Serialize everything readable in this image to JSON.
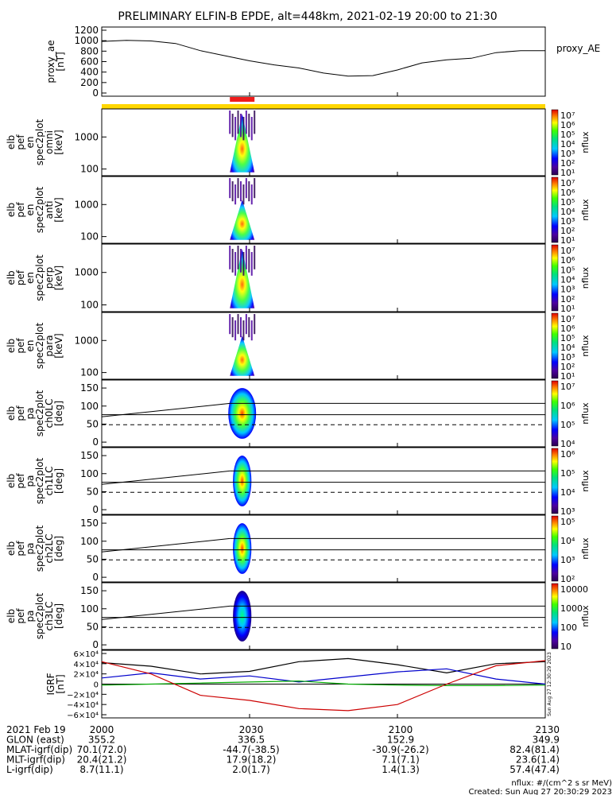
{
  "title": "PRELIMINARY ELFIN-B EPDE, alt=448km, 2021-02-19 20:00 to 21:30",
  "panels": [
    {
      "key": "ae",
      "ylabel": [
        "proxy_ae",
        "[nT]"
      ],
      "ticks": [
        "1200",
        "1000",
        "800",
        "600",
        "400",
        "200",
        "0"
      ],
      "right_label": "proxy_AE"
    },
    {
      "key": "omni",
      "ylabel": [
        "elb",
        "pef",
        "en",
        "spec2plot",
        "omni",
        "[keV]"
      ],
      "ticks": [
        "1000",
        "100"
      ],
      "colorbar": {
        "labels": [
          "10⁷",
          "10⁶",
          "10⁵",
          "10⁴",
          "10³",
          "10²",
          "10¹"
        ],
        "unit": "nflux"
      }
    },
    {
      "key": "anti",
      "ylabel": [
        "elb",
        "pef",
        "en",
        "spec2plot",
        "anti",
        "[keV]"
      ],
      "ticks": [
        "1000",
        "100"
      ],
      "colorbar": {
        "labels": [
          "10⁷",
          "10⁶",
          "10⁵",
          "10⁴",
          "10³",
          "10²",
          "10¹"
        ],
        "unit": "nflux"
      }
    },
    {
      "key": "perp",
      "ylabel": [
        "elb",
        "pef",
        "en",
        "spec2plot",
        "perp",
        "[keV]"
      ],
      "ticks": [
        "1000",
        "100"
      ],
      "colorbar": {
        "labels": [
          "10⁷",
          "10⁶",
          "10⁵",
          "10⁴",
          "10³",
          "10²",
          "10¹"
        ],
        "unit": "nflux"
      }
    },
    {
      "key": "para",
      "ylabel": [
        "elb",
        "pef",
        "en",
        "spec2plot",
        "para",
        "[keV]"
      ],
      "ticks": [
        "1000",
        "100"
      ],
      "colorbar": {
        "labels": [
          "10⁷",
          "10⁶",
          "10⁵",
          "10⁴",
          "10³",
          "10²",
          "10¹"
        ],
        "unit": "nflux"
      }
    },
    {
      "key": "ch0",
      "ylabel": [
        "elb",
        "pef",
        "pa",
        "spec2plot",
        "ch0LC",
        "[deg]"
      ],
      "ticks": [
        "150",
        "100",
        "50",
        "0"
      ],
      "colorbar": {
        "labels": [
          "10⁷",
          "10⁶",
          "10⁵",
          "10⁴"
        ],
        "unit": "nflux"
      }
    },
    {
      "key": "ch1",
      "ylabel": [
        "elb",
        "pef",
        "pa",
        "spec2plot",
        "ch1LC",
        "[deg]"
      ],
      "ticks": [
        "150",
        "100",
        "50",
        "0"
      ],
      "colorbar": {
        "labels": [
          "10⁶",
          "10⁵",
          "10⁴",
          "10³"
        ],
        "unit": "nflux"
      }
    },
    {
      "key": "ch2",
      "ylabel": [
        "elb",
        "pef",
        "pa",
        "spec2plot",
        "ch2LC",
        "[deg]"
      ],
      "ticks": [
        "150",
        "100",
        "50",
        "0"
      ],
      "colorbar": {
        "labels": [
          "10⁵",
          "10⁴",
          "10³",
          "10²"
        ],
        "unit": "nflux"
      }
    },
    {
      "key": "ch3",
      "ylabel": [
        "elb",
        "pef",
        "pa",
        "spec2plot",
        "ch3LC",
        "[deg]"
      ],
      "ticks": [
        "150",
        "100",
        "50",
        "0"
      ],
      "colorbar": {
        "labels": [
          "10000",
          "1000",
          "100",
          "10"
        ],
        "unit": "nflux"
      }
    },
    {
      "key": "igrf",
      "ylabel": [
        "IGRF",
        "[nT]"
      ],
      "ticks": [
        "6×10⁴",
        "4×10⁴",
        "2×10⁴",
        "0",
        "−2×10⁴",
        "−4×10⁴",
        "−6×10⁴"
      ],
      "side_text": "Sun Aug 27 12:30:29 2023"
    }
  ],
  "chart_data": {
    "type": "line",
    "title": "PRELIMINARY ELFIN-B EPDE, alt=448km, 2021-02-19 20:00 to 21:30",
    "x_ticks": [
      "2000",
      "2030",
      "2100",
      "2130"
    ],
    "ae_series": {
      "name": "proxy_AE",
      "unit": "nT",
      "ylim": [
        0,
        1200
      ],
      "x_min": [
        0,
        5,
        10,
        15,
        20,
        25,
        30,
        35,
        40,
        45,
        50,
        55,
        60,
        65,
        70,
        75,
        80,
        85,
        90
      ],
      "values": [
        980,
        1000,
        990,
        940,
        800,
        700,
        600,
        520,
        460,
        360,
        300,
        310,
        420,
        560,
        620,
        650,
        760,
        800,
        800
      ]
    },
    "igrf_series": [
      {
        "color": "#000000",
        "ylim": [
          -60000,
          60000
        ],
        "x_min": [
          0,
          10,
          20,
          30,
          40,
          50,
          60,
          70,
          80,
          90
        ],
        "values": [
          42000,
          35000,
          20000,
          25000,
          44000,
          50000,
          38000,
          22000,
          40000,
          44000
        ]
      },
      {
        "color": "#0000cc",
        "ylim": [
          -60000,
          60000
        ],
        "x_min": [
          0,
          10,
          20,
          30,
          40,
          50,
          60,
          70,
          80,
          90
        ],
        "values": [
          12000,
          22000,
          10000,
          16000,
          4000,
          14000,
          24000,
          30000,
          10000,
          0
        ]
      },
      {
        "color": "#00aa00",
        "ylim": [
          -60000,
          60000
        ],
        "x_min": [
          0,
          10,
          20,
          30,
          40,
          50,
          60,
          70,
          80,
          90
        ],
        "values": [
          -2000,
          0,
          2000,
          4000,
          6000,
          0,
          -2000,
          -3000,
          -3000,
          -2000
        ]
      },
      {
        "color": "#cc0000",
        "ylim": [
          -60000,
          60000
        ],
        "x_min": [
          0,
          10,
          20,
          30,
          40,
          50,
          60,
          70,
          80,
          90
        ],
        "values": [
          44000,
          20000,
          -22000,
          -32000,
          -48000,
          -52000,
          -40000,
          0,
          36000,
          46000
        ]
      }
    ],
    "science_zone_bar": {
      "x_min_start": 26,
      "x_min_end": 31,
      "color": "#ee1c1c"
    },
    "spectra_time_range_min": [
      26,
      31
    ]
  },
  "footer": {
    "rows": [
      [
        "2021 Feb 19",
        "2000",
        "2030",
        "2100",
        "2130"
      ],
      [
        "GLON (east)",
        "355.2",
        "336.5",
        "152.9",
        "349.9"
      ],
      [
        "MLAT-igrf(dip)",
        "70.1(72.0)",
        "-44.7(-38.5)",
        "-30.9(-26.2)",
        "82.4(81.4)"
      ],
      [
        "MLT-igrf(dip)",
        "20.4(21.2)",
        "17.9(18.2)",
        "7.1(7.1)",
        "23.6(1.4)"
      ],
      [
        "L-igrf(dip)",
        "8.7(11.1)",
        "2.0(1.7)",
        "1.4(1.3)",
        "57.4(47.4)"
      ]
    ],
    "units_note": "nflux: #/(cm^2 s sr MeV)",
    "created": "Created: Sun Aug 27 20:30:29 2023"
  },
  "colors": {
    "yellow_bar": "#ffd700",
    "science_bar": "#ee1c1c"
  }
}
